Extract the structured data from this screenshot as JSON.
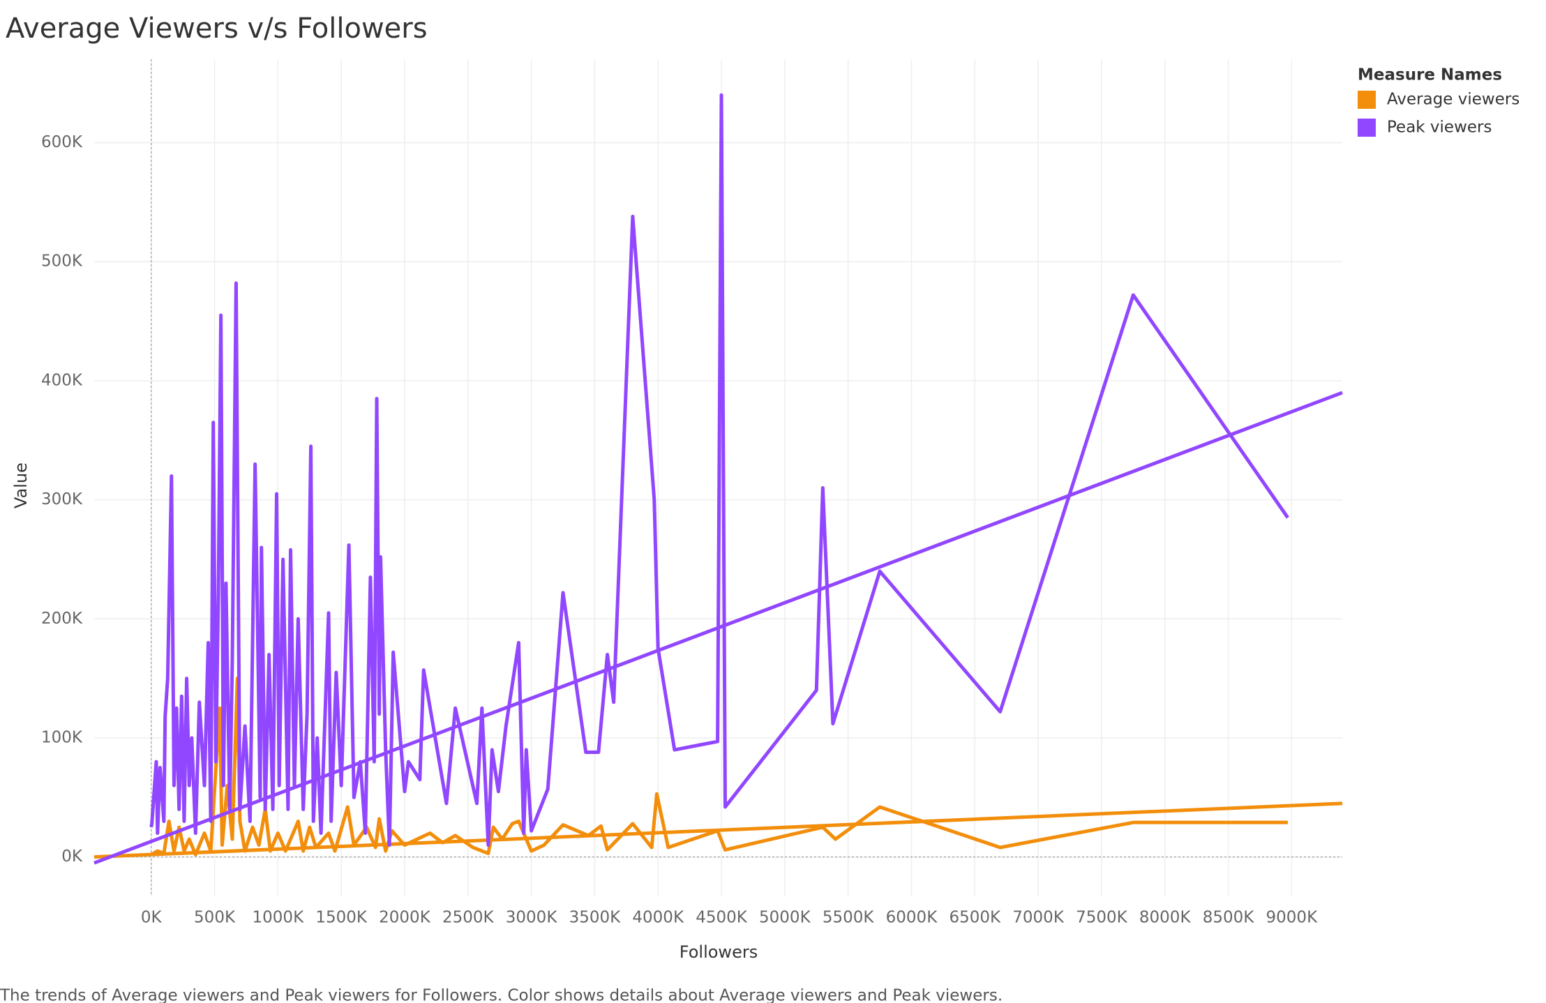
{
  "chart_data": {
    "type": "line",
    "title": "Average Viewers v/s Followers",
    "x_label": "Followers",
    "y_label": "Value",
    "caption": "The trends of Average viewers and Peak viewers for Followers.  Color shows details about Average viewers and Peak viewers.",
    "legend_title": "Measure Names",
    "legend": "top-right",
    "grid": true,
    "xlim": [
      -450000,
      9400000
    ],
    "ylim": [
      -33000,
      670000
    ],
    "xticks": [
      {
        "value": 0,
        "label": "0K"
      },
      {
        "value": 500000,
        "label": "500K"
      },
      {
        "value": 1000000,
        "label": "1000K"
      },
      {
        "value": 1500000,
        "label": "1500K"
      },
      {
        "value": 2000000,
        "label": "2000K"
      },
      {
        "value": 2500000,
        "label": "2500K"
      },
      {
        "value": 3000000,
        "label": "3000K"
      },
      {
        "value": 3500000,
        "label": "3500K"
      },
      {
        "value": 4000000,
        "label": "4000K"
      },
      {
        "value": 4500000,
        "label": "4500K"
      },
      {
        "value": 5000000,
        "label": "5000K"
      },
      {
        "value": 5500000,
        "label": "5500K"
      },
      {
        "value": 6000000,
        "label": "6000K"
      },
      {
        "value": 6500000,
        "label": "6500K"
      },
      {
        "value": 7000000,
        "label": "7000K"
      },
      {
        "value": 7500000,
        "label": "7500K"
      },
      {
        "value": 8000000,
        "label": "8000K"
      },
      {
        "value": 8500000,
        "label": "8500K"
      },
      {
        "value": 9000000,
        "label": "9000K"
      }
    ],
    "yticks": [
      {
        "value": 0,
        "label": "0K"
      },
      {
        "value": 100000,
        "label": "100K"
      },
      {
        "value": 200000,
        "label": "200K"
      },
      {
        "value": 300000,
        "label": "300K"
      },
      {
        "value": 400000,
        "label": "400K"
      },
      {
        "value": 500000,
        "label": "500K"
      },
      {
        "value": 600000,
        "label": "600K"
      }
    ],
    "series": [
      {
        "name": "Average viewers",
        "color": "#f28e0b",
        "x": [
          0,
          50000,
          100000,
          140000,
          180000,
          220000,
          260000,
          300000,
          350000,
          420000,
          470000,
          540000,
          560000,
          600000,
          640000,
          680000,
          700000,
          740000,
          800000,
          850000,
          900000,
          940000,
          1000000,
          1060000,
          1100000,
          1160000,
          1200000,
          1250000,
          1300000,
          1400000,
          1450000,
          1550000,
          1600000,
          1700000,
          1770000,
          1800000,
          1850000,
          1900000,
          2000000,
          2100000,
          2200000,
          2300000,
          2400000,
          2540000,
          2660000,
          2700000,
          2770000,
          2850000,
          2900000,
          3000000,
          3100000,
          3250000,
          3450000,
          3550000,
          3600000,
          3800000,
          3950000,
          3990000,
          4080000,
          4470000,
          4530000,
          5300000,
          5400000,
          5750000,
          6700000,
          7750000,
          8970000
        ],
        "values": [
          2000,
          5000,
          3000,
          30000,
          5000,
          25000,
          5000,
          15000,
          2000,
          20000,
          5000,
          125000,
          10000,
          60000,
          15000,
          150000,
          30000,
          5000,
          25000,
          10000,
          40000,
          5000,
          20000,
          5000,
          15000,
          30000,
          5000,
          25000,
          8000,
          20000,
          5000,
          42000,
          10000,
          25000,
          8000,
          32000,
          5000,
          22000,
          10000,
          15000,
          20000,
          12000,
          18000,
          8000,
          3000,
          25000,
          15000,
          28000,
          30000,
          5000,
          10000,
          27000,
          18000,
          26000,
          6000,
          28000,
          8000,
          53000,
          8000,
          22000,
          6000,
          25000,
          15000,
          42000,
          8000,
          29000,
          29000
        ],
        "trend": {
          "x": [
            -450000,
            9400000
          ],
          "values": [
            0,
            45000
          ]
        }
      },
      {
        "name": "Peak viewers",
        "color": "#9146ff",
        "x": [
          0,
          5000,
          40000,
          50000,
          70000,
          100000,
          110000,
          130000,
          160000,
          180000,
          200000,
          220000,
          240000,
          260000,
          280000,
          300000,
          320000,
          350000,
          380000,
          420000,
          450000,
          470000,
          490000,
          510000,
          530000,
          550000,
          570000,
          590000,
          620000,
          640000,
          670000,
          700000,
          740000,
          780000,
          820000,
          860000,
          870000,
          900000,
          930000,
          960000,
          990000,
          1010000,
          1040000,
          1080000,
          1100000,
          1130000,
          1160000,
          1200000,
          1230000,
          1260000,
          1280000,
          1310000,
          1340000,
          1400000,
          1420000,
          1460000,
          1500000,
          1560000,
          1600000,
          1650000,
          1690000,
          1730000,
          1760000,
          1780000,
          1800000,
          1810000,
          1850000,
          1880000,
          1910000,
          2000000,
          2030000,
          2120000,
          2150000,
          2330000,
          2400000,
          2570000,
          2610000,
          2660000,
          2690000,
          2740000,
          2800000,
          2900000,
          2940000,
          2960000,
          3000000,
          3130000,
          3250000,
          3430000,
          3530000,
          3600000,
          3650000,
          3800000,
          3970000,
          4000000,
          4130000,
          4470000,
          4500000,
          4530000,
          5250000,
          5300000,
          5380000,
          5750000,
          6700000,
          7750000,
          8970000
        ],
        "values": [
          25000,
          28000,
          80000,
          20000,
          75000,
          30000,
          118000,
          150000,
          320000,
          60000,
          125000,
          40000,
          135000,
          30000,
          150000,
          60000,
          100000,
          20000,
          130000,
          60000,
          180000,
          30000,
          365000,
          80000,
          220000,
          455000,
          60000,
          230000,
          40000,
          165000,
          482000,
          40000,
          110000,
          30000,
          330000,
          50000,
          260000,
          40000,
          170000,
          40000,
          305000,
          60000,
          250000,
          40000,
          258000,
          60000,
          200000,
          40000,
          120000,
          345000,
          30000,
          100000,
          20000,
          205000,
          30000,
          155000,
          60000,
          262000,
          50000,
          80000,
          20000,
          235000,
          80000,
          385000,
          120000,
          252000,
          90000,
          10000,
          172000,
          55000,
          80000,
          65000,
          157000,
          45000,
          125000,
          45000,
          125000,
          10000,
          90000,
          55000,
          110000,
          180000,
          20000,
          90000,
          22000,
          57000,
          222000,
          88000,
          88000,
          170000,
          130000,
          538000,
          300000,
          175000,
          90000,
          97000,
          640000,
          42000,
          140000,
          310000,
          112000,
          240000,
          122000,
          472000,
          285000
        ],
        "trend": {
          "x": [
            -450000,
            9400000
          ],
          "values": [
            -5000,
            390000
          ]
        }
      }
    ]
  }
}
